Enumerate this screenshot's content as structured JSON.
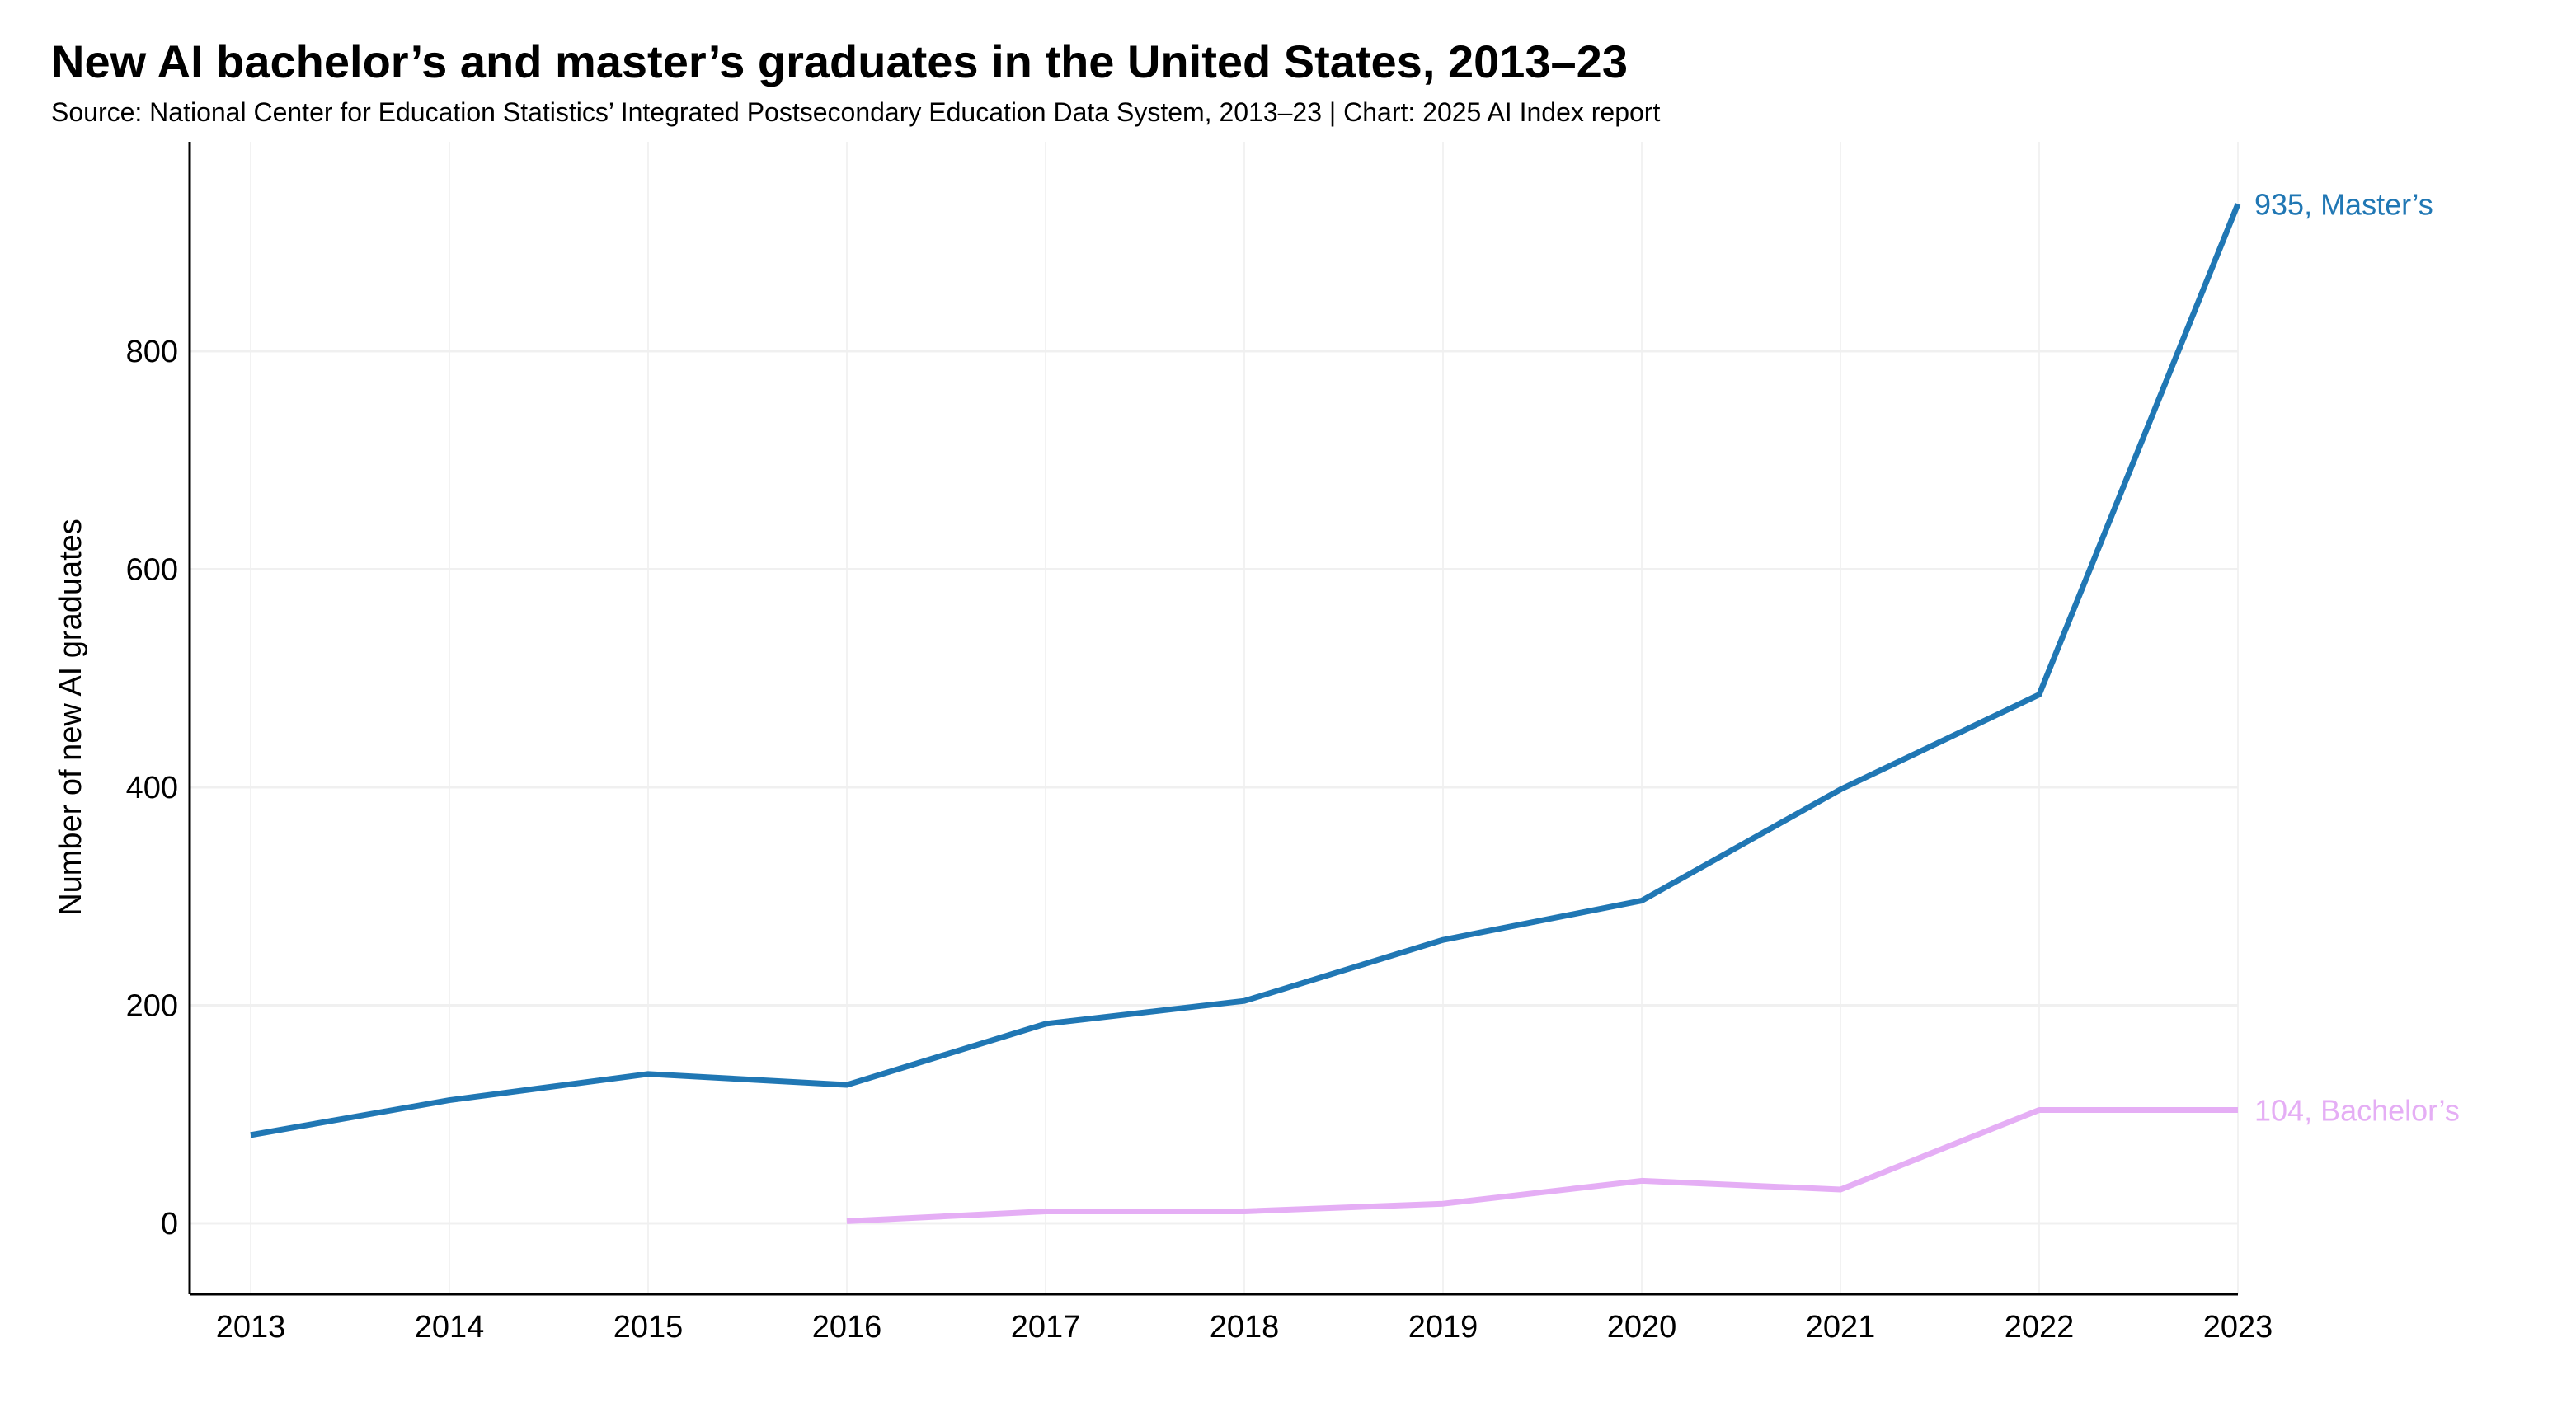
{
  "chart_data": {
    "type": "line",
    "title": "New AI bachelor’s and master’s graduates in the United States, 2013–23",
    "subtitle": "Source: National Center for Education Statistics’ Integrated Postsecondary Education Data System, 2013–23 | Chart: 2025 AI Index report",
    "xlabel": "",
    "ylabel": "Number of new AI graduates",
    "x": [
      2013,
      2014,
      2015,
      2016,
      2017,
      2018,
      2019,
      2020,
      2021,
      2022,
      2023
    ],
    "x_ticks": [
      "2013",
      "2014",
      "2015",
      "2016",
      "2017",
      "2018",
      "2019",
      "2020",
      "2021",
      "2022",
      "2023"
    ],
    "y_ticks": [
      "0",
      "200",
      "400",
      "600",
      "800"
    ],
    "ylim": [
      -60,
      990
    ],
    "grid": true,
    "series": [
      {
        "name": "Master’s",
        "color": "#2077b4",
        "end_label": "935, Master’s",
        "values": [
          81,
          113,
          137,
          127,
          183,
          204,
          260,
          296,
          398,
          485,
          935
        ]
      },
      {
        "name": "Bachelor’s",
        "color": "#e5aef5",
        "end_label": "104, Bachelor’s",
        "values": [
          null,
          null,
          null,
          2,
          11,
          11,
          18,
          39,
          31,
          104,
          104
        ]
      }
    ]
  }
}
